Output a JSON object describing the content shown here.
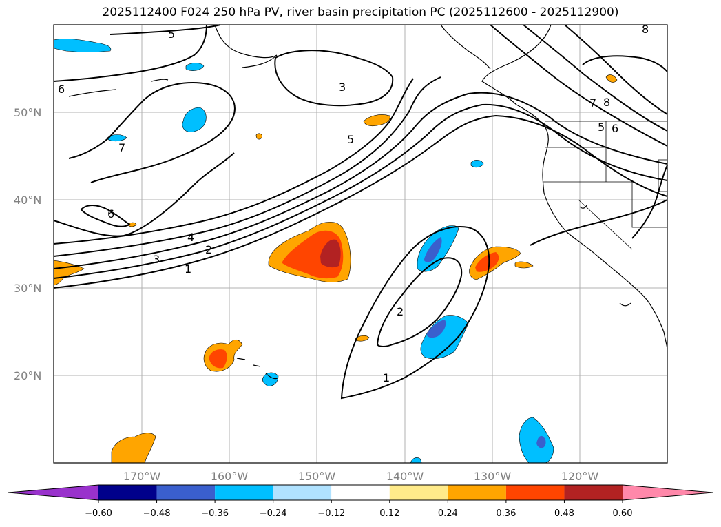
{
  "title": "2025112400 F024 250 hPa PV, river basin precipitation PC (2025112600 - 2025112900)",
  "lat_labels": [
    "50°N",
    "40°N",
    "30°N",
    "20°N"
  ],
  "lon_labels": [
    "170°W",
    "160°W",
    "150°W",
    "140°W",
    "130°W",
    "120°W"
  ],
  "contour_labels": [
    "5",
    "6",
    "3",
    "7",
    "6",
    "5",
    "4",
    "2",
    "3",
    "1",
    "2",
    "1",
    "7",
    "8",
    "5",
    "6",
    "8"
  ],
  "colorbar": {
    "ticks": [
      "−0.60",
      "−0.48",
      "−0.36",
      "−0.24",
      "−0.12",
      "0.12",
      "0.24",
      "0.36",
      "0.48",
      "0.60"
    ],
    "colors": [
      "#9932cc",
      "#00008b",
      "#3a5fcd",
      "#00bfff",
      "#b0e2ff",
      "#ffffff",
      "#ffeb8a",
      "#ffa500",
      "#ff4500",
      "#b22222",
      "#ff88aa"
    ]
  },
  "colors": {
    "orange": "#ffa500",
    "red_orange": "#ff4500",
    "firebrick": "#b22222",
    "deep_sky_blue": "#00bfff",
    "royal_blue": "#3a5fcd"
  }
}
